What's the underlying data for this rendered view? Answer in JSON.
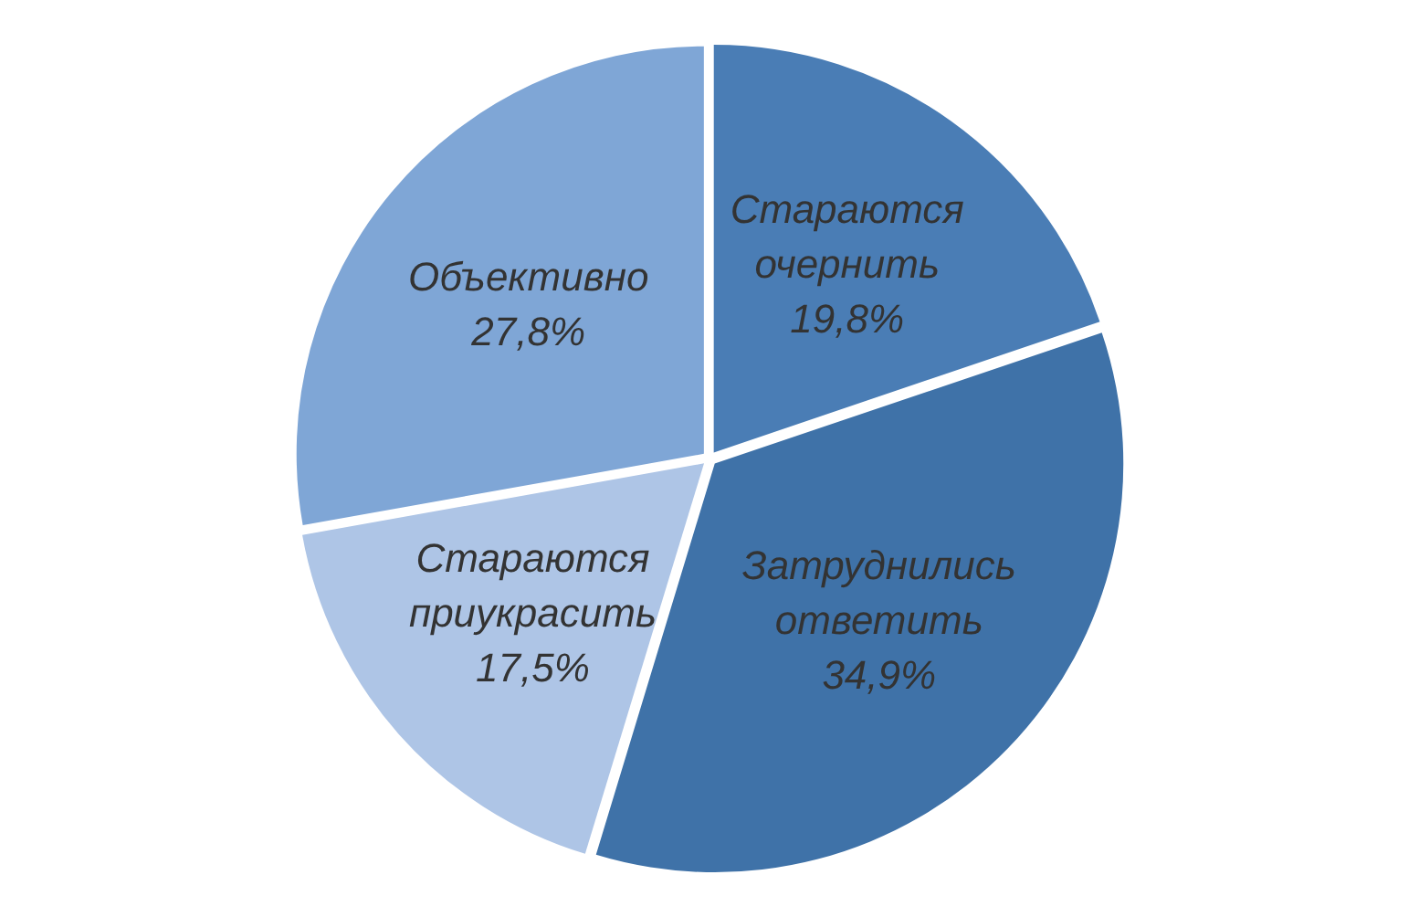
{
  "chart_data": {
    "type": "pie",
    "categories": [
      "Стараются очернить",
      "Затруднились ответить",
      "Стараются приукрасить",
      "Объективно"
    ],
    "values": [
      19.8,
      34.9,
      17.5,
      27.8
    ],
    "value_labels": [
      "19,8%",
      "34,9%",
      "17,5%",
      "27,8%"
    ],
    "colors": [
      "#4a7db5",
      "#3f72a8",
      "#aec5e6",
      "#7fa6d6"
    ]
  }
}
